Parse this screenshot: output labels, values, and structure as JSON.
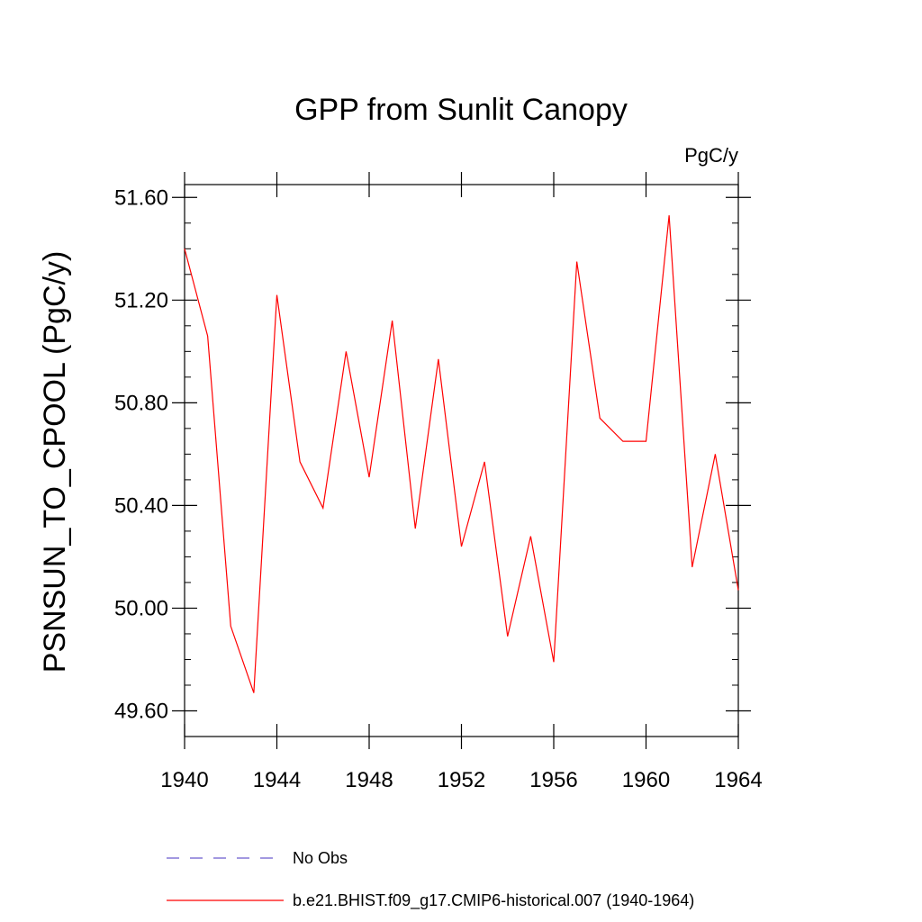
{
  "chart_data": {
    "type": "line",
    "title": "GPP from Sunlit Canopy",
    "units": "PgC/y",
    "xlabel": "",
    "ylabel": "PSNSUN_TO_CPOOL  (PgC/y)",
    "xlim": [
      1940,
      1964
    ],
    "ylim": [
      49.5,
      51.65
    ],
    "x_ticks": [
      1940,
      1944,
      1948,
      1952,
      1956,
      1960,
      1964
    ],
    "x_tick_labels": [
      "1940",
      "1944",
      "1948",
      "1952",
      "1956",
      "1960",
      "1964"
    ],
    "y_ticks": [
      49.6,
      50.0,
      50.4,
      50.8,
      51.2,
      51.6
    ],
    "y_tick_labels": [
      "49.60",
      "50.00",
      "50.40",
      "50.80",
      "51.20",
      "51.60"
    ],
    "grid": false,
    "legend_position": "bottom",
    "series": [
      {
        "name": "b.e21.BHIST.f09_g17.CMIP6-historical.007 (1940-1964)",
        "color": "#ff0000",
        "style": "solid",
        "x": [
          1940,
          1941,
          1942,
          1943,
          1944,
          1945,
          1946,
          1947,
          1948,
          1949,
          1950,
          1951,
          1952,
          1953,
          1954,
          1955,
          1956,
          1957,
          1958,
          1959,
          1960,
          1961,
          1962,
          1963,
          1964
        ],
        "values": [
          51.4,
          51.06,
          49.93,
          49.67,
          51.22,
          50.57,
          50.39,
          51.0,
          50.51,
          51.12,
          50.31,
          50.97,
          50.24,
          50.57,
          49.89,
          50.28,
          49.79,
          51.35,
          50.74,
          50.65,
          50.65,
          51.53,
          50.16,
          50.6,
          50.07
        ]
      },
      {
        "name": "No Obs",
        "color": "#6a5acd",
        "style": "dashed",
        "x": [],
        "values": []
      }
    ]
  }
}
